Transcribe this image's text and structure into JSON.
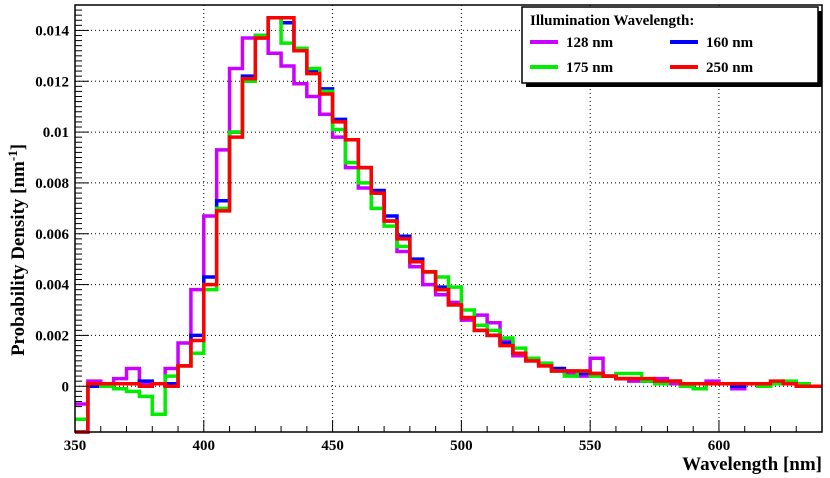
{
  "chart_data": {
    "type": "line",
    "style": "step histogram",
    "xlabel": "Wavelength [nm]",
    "ylabel_main": "Probability Density [nm",
    "ylabel_sup": "-1",
    "ylabel_close": "]",
    "xlim": [
      350,
      640
    ],
    "ylim": [
      -0.0018,
      0.015
    ],
    "x_ticks": [
      350,
      400,
      450,
      500,
      550,
      600
    ],
    "x_tick_labels": [
      "350",
      "400",
      "450",
      "500",
      "550",
      "600"
    ],
    "y_ticks": [
      0,
      0.002,
      0.004,
      0.006,
      0.008,
      0.01,
      0.012,
      0.014
    ],
    "y_tick_labels": [
      "0",
      "0.002",
      "0.004",
      "0.006",
      "0.008",
      "0.01",
      "0.012",
      "0.014"
    ],
    "grid": true,
    "legend_title": "Illumination Wavelength:",
    "legend_position": "top-right",
    "bin_edges": [
      350,
      355,
      360,
      365,
      370,
      375,
      380,
      385,
      390,
      395,
      400,
      405,
      410,
      415,
      420,
      425,
      430,
      435,
      440,
      445,
      450,
      455,
      460,
      465,
      470,
      475,
      480,
      485,
      490,
      495,
      500,
      505,
      510,
      515,
      520,
      525,
      530,
      535,
      540,
      545,
      550,
      555,
      560,
      565,
      570,
      575,
      580,
      585,
      590,
      595,
      600,
      605,
      610,
      615,
      620,
      625,
      630,
      635,
      640
    ],
    "series": [
      {
        "name": "128 nm",
        "color": "#cc00ff",
        "values": [
          -0.0007,
          0.0002,
          0.0001,
          0.0003,
          0.0007,
          0.0001,
          0.0001,
          0.0007,
          0.0017,
          0.0038,
          0.0067,
          0.0093,
          0.0125,
          0.0137,
          0.0137,
          0.0131,
          0.0126,
          0.0119,
          0.0114,
          0.0107,
          0.0098,
          0.0086,
          0.0078,
          0.0076,
          0.0065,
          0.0053,
          0.0047,
          0.004,
          0.0036,
          0.0033,
          0.0026,
          0.0028,
          0.0025,
          0.0018,
          0.0012,
          0.001,
          0.0008,
          0.0006,
          0.0005,
          0.0004,
          0.0011,
          0.0004,
          0.0003,
          0.0002,
          0.0002,
          0.0003,
          0.0001,
          0.0001,
          0.0001,
          0.0002,
          0.0001,
          -0.0001,
          0.0001,
          0.0001,
          0.0001,
          0.0001,
          0.0001,
          0.0
        ]
      },
      {
        "name": "160 nm",
        "color": "#0000ff",
        "values": [
          -0.0018,
          0.0,
          0.0001,
          0.0001,
          0.0001,
          0.0002,
          0.0001,
          0.0001,
          0.0008,
          0.002,
          0.0043,
          0.0073,
          0.01,
          0.0122,
          0.0138,
          0.0145,
          0.0143,
          0.0133,
          0.0124,
          0.0117,
          0.0105,
          0.0097,
          0.0086,
          0.0077,
          0.0067,
          0.0059,
          0.005,
          0.0045,
          0.0039,
          0.0032,
          0.0027,
          0.0022,
          0.002,
          0.0017,
          0.0013,
          0.0011,
          0.0009,
          0.0007,
          0.0006,
          0.0005,
          0.0005,
          0.0004,
          0.0003,
          0.0003,
          0.0002,
          0.0002,
          0.0002,
          0.0001,
          0.0001,
          0.0001,
          0.0001,
          0.0,
          0.0001,
          0.0,
          0.0001,
          0.0001,
          0.0,
          0.0
        ]
      },
      {
        "name": "175 nm",
        "color": "#00ee00",
        "values": [
          -0.0013,
          0.0001,
          0.0,
          -0.0001,
          -0.0002,
          -0.0004,
          -0.0011,
          0.0004,
          0.0008,
          0.0013,
          0.0038,
          0.007,
          0.01,
          0.012,
          0.0138,
          0.0145,
          0.0135,
          0.0133,
          0.0125,
          0.0116,
          0.0101,
          0.0088,
          0.008,
          0.007,
          0.0063,
          0.0055,
          0.0049,
          0.0045,
          0.0043,
          0.0039,
          0.003,
          0.0024,
          0.0022,
          0.0019,
          0.0015,
          0.0011,
          0.0009,
          0.0006,
          0.0004,
          0.0006,
          0.0004,
          0.0004,
          0.0005,
          0.0005,
          0.0002,
          0.0001,
          0.0002,
          0.0,
          -0.0001,
          0.0001,
          0.0001,
          0.0001,
          0.0001,
          0.0,
          0.0001,
          0.0002,
          0.0001,
          0.0
        ]
      },
      {
        "name": "250 nm",
        "color": "#ff0000",
        "values": [
          -0.0018,
          0.0001,
          0.0001,
          0.0001,
          0.0001,
          0.0,
          0.0001,
          0.0,
          0.0008,
          0.0018,
          0.004,
          0.0069,
          0.0098,
          0.0121,
          0.0137,
          0.0145,
          0.0145,
          0.0132,
          0.0123,
          0.0115,
          0.0104,
          0.0097,
          0.0086,
          0.0076,
          0.0065,
          0.0058,
          0.0049,
          0.0045,
          0.0038,
          0.0032,
          0.0027,
          0.0022,
          0.002,
          0.0016,
          0.0013,
          0.001,
          0.0008,
          0.0006,
          0.0006,
          0.0006,
          0.0005,
          0.0004,
          0.0003,
          0.0003,
          0.0003,
          0.0002,
          0.0002,
          0.0001,
          0.0001,
          0.0001,
          0.0001,
          0.0001,
          0.0001,
          0.0001,
          0.0002,
          0.0001,
          0.0,
          0.0
        ]
      }
    ]
  }
}
